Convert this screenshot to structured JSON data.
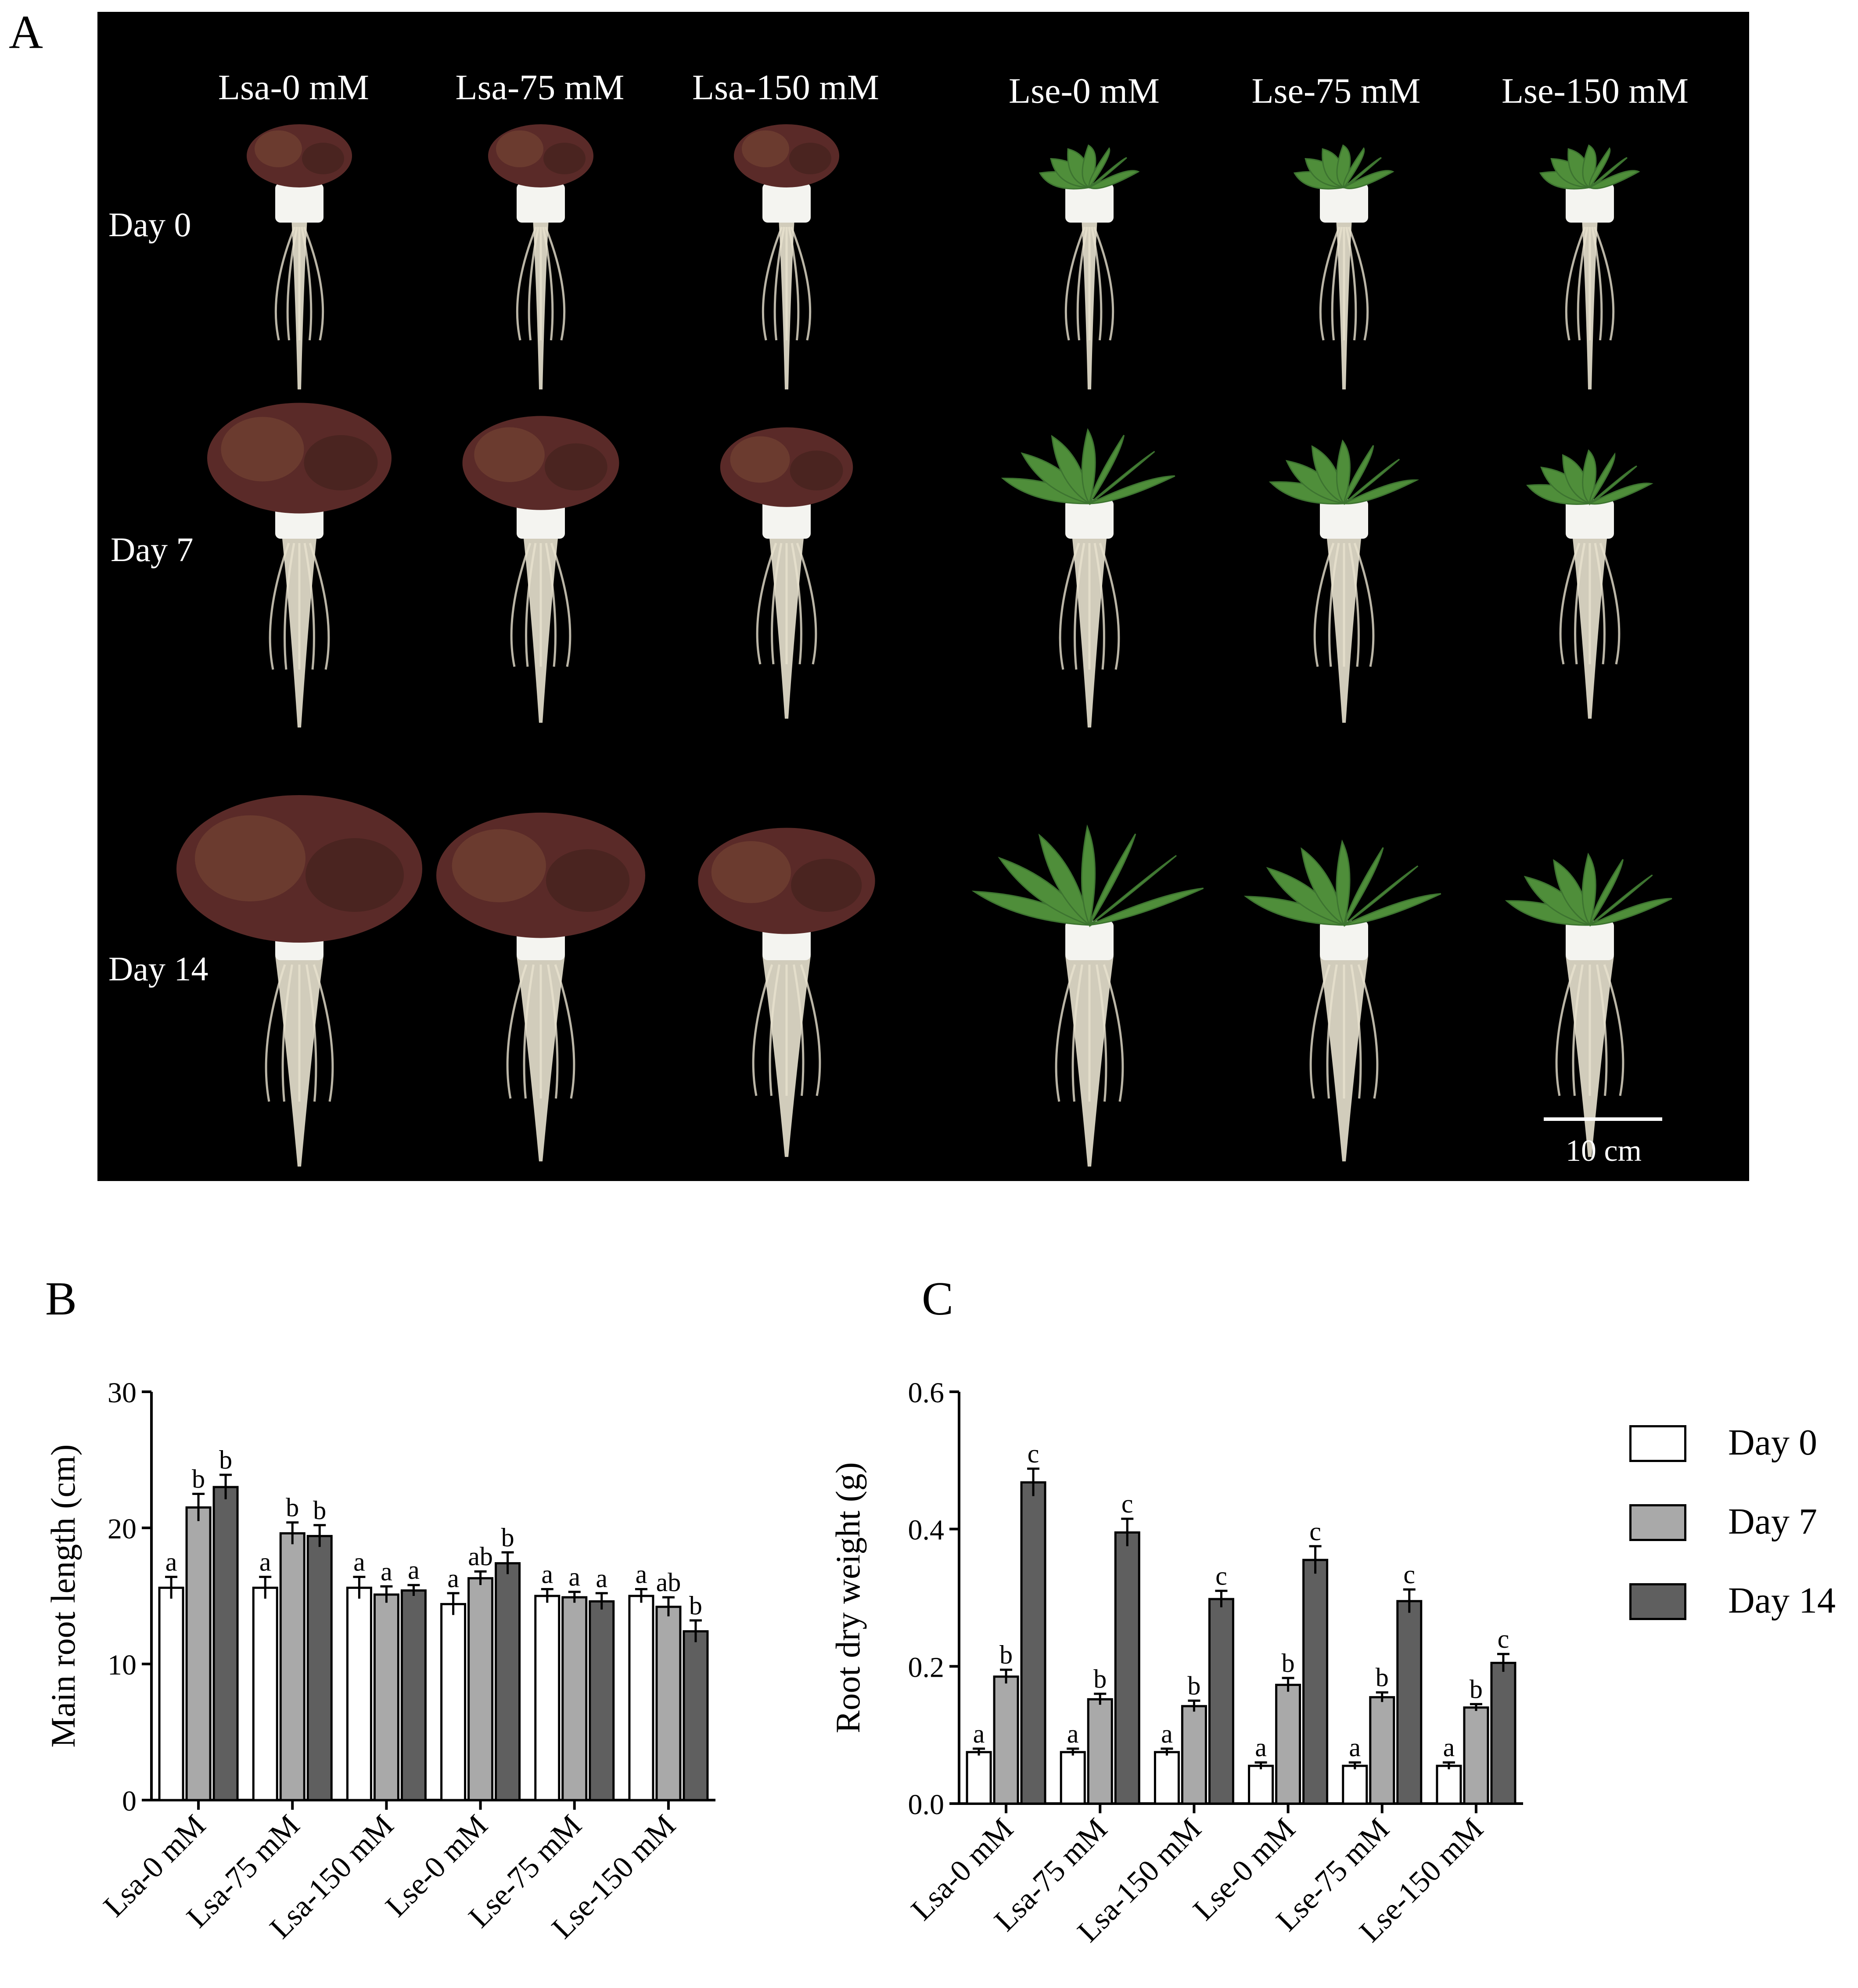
{
  "panels": {
    "a": {
      "letter": "A",
      "columns": [
        "Lsa-0 mM",
        "Lsa-75 mM",
        "Lsa-150 mM",
        "Lse-0 mM",
        "Lse-75 mM",
        "Lse-150 mM"
      ],
      "rows": [
        "Day 0",
        "Day 7",
        "Day 14"
      ],
      "scale_label": "10 cm"
    },
    "b": {
      "letter": "B"
    },
    "c": {
      "letter": "C"
    }
  },
  "legend": [
    {
      "label": "Day 0",
      "color": "#ffffff"
    },
    {
      "label": "Day 7",
      "color": "#a9a9a9"
    },
    {
      "label": "Day 14",
      "color": "#5f5f5f"
    }
  ],
  "colors": {
    "photo_background": "#000000",
    "lsa_leaf": "#5a2a28",
    "lse_leaf": "#4f8e3a",
    "root": "#e8e2cf",
    "pot": "#f4f4f0"
  },
  "chart_data": [
    {
      "type": "bar",
      "categories": [
        "Lsa-0 mM",
        "Lsa-75 mM",
        "Lsa-150 mM",
        "Lse-0 mM",
        "Lse-75 mM",
        "Lse-150 mM"
      ],
      "xlabel": "",
      "ylabel": "Main root length (cm)",
      "ylim": [
        0,
        30
      ],
      "yticks": [
        "0",
        "10",
        "20",
        "30"
      ],
      "series": [
        {
          "name": "Day 0",
          "color": "#ffffff",
          "values": [
            15.6,
            15.6,
            15.6,
            14.4,
            15.0,
            15.0
          ],
          "errors": [
            0.8,
            0.8,
            0.8,
            0.8,
            0.5,
            0.5
          ],
          "letters": [
            "a",
            "a",
            "a",
            "a",
            "a",
            "a"
          ]
        },
        {
          "name": "Day 7",
          "color": "#a9a9a9",
          "values": [
            21.5,
            19.6,
            15.1,
            16.3,
            14.9,
            14.2
          ],
          "errors": [
            1.0,
            0.8,
            0.6,
            0.5,
            0.4,
            0.7
          ],
          "letters": [
            "b",
            "b",
            "a",
            "ab",
            "a",
            "ab"
          ]
        },
        {
          "name": "Day 14",
          "color": "#5f5f5f",
          "values": [
            23.0,
            19.4,
            15.4,
            17.4,
            14.6,
            12.4
          ],
          "errors": [
            0.9,
            0.8,
            0.4,
            0.8,
            0.6,
            0.8
          ],
          "letters": [
            "b",
            "b",
            "a",
            "b",
            "a",
            "b"
          ]
        }
      ]
    },
    {
      "type": "bar",
      "categories": [
        "Lsa-0 mM",
        "Lsa-75 mM",
        "Lsa-150 mM",
        "Lse-0 mM",
        "Lse-75 mM",
        "Lse-150 mM"
      ],
      "xlabel": "",
      "ylabel": "Root dry weight (g)",
      "ylim": [
        0,
        0.6
      ],
      "yticks": [
        "0.0",
        "0.2",
        "0.4",
        "0.6"
      ],
      "series": [
        {
          "name": "Day 0",
          "color": "#ffffff",
          "values": [
            0.075,
            0.075,
            0.075,
            0.055,
            0.055,
            0.055
          ],
          "errors": [
            0.005,
            0.005,
            0.005,
            0.005,
            0.005,
            0.005
          ],
          "letters": [
            "a",
            "a",
            "a",
            "a",
            "a",
            "a"
          ]
        },
        {
          "name": "Day 7",
          "color": "#a9a9a9",
          "values": [
            0.185,
            0.152,
            0.142,
            0.173,
            0.155,
            0.14
          ],
          "errors": [
            0.01,
            0.008,
            0.008,
            0.01,
            0.007,
            0.005
          ],
          "letters": [
            "b",
            "b",
            "b",
            "b",
            "b",
            "b"
          ]
        },
        {
          "name": "Day 14",
          "color": "#5f5f5f",
          "values": [
            0.468,
            0.395,
            0.298,
            0.355,
            0.295,
            0.205
          ],
          "errors": [
            0.02,
            0.02,
            0.012,
            0.02,
            0.017,
            0.013
          ],
          "letters": [
            "c",
            "c",
            "c",
            "c",
            "c",
            "c"
          ]
        }
      ]
    }
  ]
}
